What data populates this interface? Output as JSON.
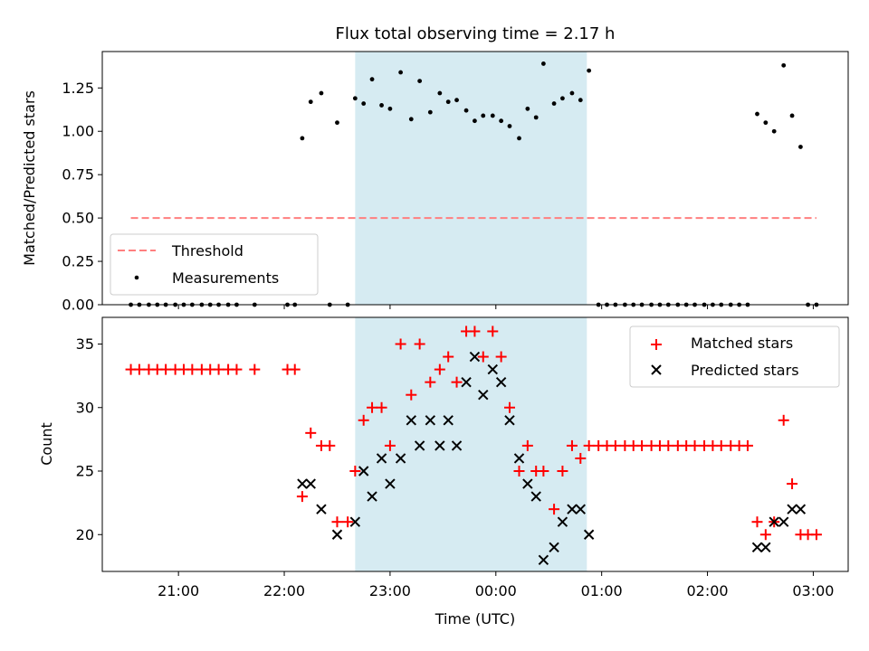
{
  "chart_data": [
    {
      "type": "scatter",
      "title": "Flux total observing time = 2.17 h",
      "xlabel": "",
      "ylabel": "Matched/Predicted stars",
      "xlim": [
        20.28,
        27.33
      ],
      "ylim": [
        0,
        1.46
      ],
      "yticks": [
        0.0,
        0.25,
        0.5,
        0.75,
        1.0,
        1.25
      ],
      "ytick_labels": [
        "0.00",
        "0.25",
        "0.50",
        "0.75",
        "1.00",
        "1.25"
      ],
      "shaded_span": {
        "x": [
          22.67,
          24.86
        ],
        "color": "#add8e6"
      },
      "legend": {
        "position": "lower-left",
        "entries": [
          "Threshold",
          "Measurements"
        ]
      },
      "series": [
        {
          "name": "Threshold",
          "style": "dashed-line",
          "color": "#ff7f7f",
          "x": [
            20.55,
            27.03
          ],
          "y": [
            0.5,
            0.5
          ]
        },
        {
          "name": "Measurements",
          "style": "dot",
          "color": "#000000",
          "points": [
            [
              20.55,
              0
            ],
            [
              20.63,
              0
            ],
            [
              20.72,
              0
            ],
            [
              20.8,
              0
            ],
            [
              20.88,
              0
            ],
            [
              20.97,
              0
            ],
            [
              21.05,
              0
            ],
            [
              21.13,
              0
            ],
            [
              21.22,
              0
            ],
            [
              21.3,
              0
            ],
            [
              21.38,
              0
            ],
            [
              21.47,
              0
            ],
            [
              21.55,
              0
            ],
            [
              21.72,
              0
            ],
            [
              22.03,
              0
            ],
            [
              22.1,
              0
            ],
            [
              22.43,
              0
            ],
            [
              22.6,
              0
            ],
            [
              22.17,
              0.96
            ],
            [
              22.25,
              1.17
            ],
            [
              22.35,
              1.22
            ],
            [
              22.5,
              1.05
            ],
            [
              22.67,
              1.19
            ],
            [
              22.75,
              1.16
            ],
            [
              22.83,
              1.3
            ],
            [
              22.92,
              1.15
            ],
            [
              23.0,
              1.13
            ],
            [
              23.1,
              1.34
            ],
            [
              23.2,
              1.07
            ],
            [
              23.28,
              1.29
            ],
            [
              23.38,
              1.11
            ],
            [
              23.47,
              1.22
            ],
            [
              23.55,
              1.17
            ],
            [
              23.63,
              1.18
            ],
            [
              23.72,
              1.12
            ],
            [
              23.8,
              1.06
            ],
            [
              23.88,
              1.09
            ],
            [
              23.97,
              1.09
            ],
            [
              24.05,
              1.06
            ],
            [
              24.13,
              1.03
            ],
            [
              24.22,
              0.96
            ],
            [
              24.3,
              1.13
            ],
            [
              24.38,
              1.08
            ],
            [
              24.45,
              1.39
            ],
            [
              24.55,
              1.16
            ],
            [
              24.63,
              1.19
            ],
            [
              24.72,
              1.22
            ],
            [
              24.8,
              1.18
            ],
            [
              24.88,
              1.35
            ],
            [
              24.97,
              0
            ],
            [
              25.05,
              0
            ],
            [
              25.13,
              0
            ],
            [
              25.22,
              0
            ],
            [
              25.3,
              0
            ],
            [
              25.38,
              0
            ],
            [
              25.47,
              0
            ],
            [
              25.55,
              0
            ],
            [
              25.63,
              0
            ],
            [
              25.72,
              0
            ],
            [
              25.8,
              0
            ],
            [
              25.88,
              0
            ],
            [
              25.97,
              0
            ],
            [
              26.05,
              0
            ],
            [
              26.13,
              0
            ],
            [
              26.22,
              0
            ],
            [
              26.3,
              0
            ],
            [
              26.38,
              0
            ],
            [
              26.47,
              1.1
            ],
            [
              26.55,
              1.05
            ],
            [
              26.63,
              1.0
            ],
            [
              26.72,
              1.38
            ],
            [
              26.8,
              1.09
            ],
            [
              26.88,
              0.91
            ],
            [
              26.95,
              0
            ],
            [
              27.03,
              0
            ]
          ]
        }
      ]
    },
    {
      "type": "scatter",
      "title": "",
      "xlabel": "Time (UTC)",
      "ylabel": "Count",
      "xlim": [
        20.28,
        27.33
      ],
      "ylim": [
        17.1,
        37.1
      ],
      "yticks": [
        20,
        25,
        30,
        35
      ],
      "ytick_labels": [
        "20",
        "25",
        "30",
        "35"
      ],
      "xticks": [
        21,
        22,
        23,
        24,
        25,
        26,
        27
      ],
      "xtick_labels": [
        "21:00",
        "22:00",
        "23:00",
        "00:00",
        "01:00",
        "02:00",
        "03:00"
      ],
      "shaded_span": {
        "x": [
          22.67,
          24.86
        ],
        "color": "#add8e6"
      },
      "legend": {
        "position": "top-right",
        "entries": [
          "Matched stars",
          "Predicted stars"
        ]
      },
      "series": [
        {
          "name": "Matched stars",
          "marker": "plus",
          "color": "#ff0000",
          "points": [
            [
              20.55,
              33
            ],
            [
              20.63,
              33
            ],
            [
              20.72,
              33
            ],
            [
              20.8,
              33
            ],
            [
              20.88,
              33
            ],
            [
              20.97,
              33
            ],
            [
              21.05,
              33
            ],
            [
              21.13,
              33
            ],
            [
              21.22,
              33
            ],
            [
              21.3,
              33
            ],
            [
              21.38,
              33
            ],
            [
              21.47,
              33
            ],
            [
              21.55,
              33
            ],
            [
              21.72,
              33
            ],
            [
              22.03,
              33
            ],
            [
              22.1,
              33
            ],
            [
              22.17,
              23
            ],
            [
              22.25,
              28
            ],
            [
              22.35,
              27
            ],
            [
              22.43,
              27
            ],
            [
              22.5,
              21
            ],
            [
              22.6,
              21
            ],
            [
              22.67,
              25
            ],
            [
              22.75,
              29
            ],
            [
              22.83,
              30
            ],
            [
              22.92,
              30
            ],
            [
              23.0,
              27
            ],
            [
              23.1,
              35
            ],
            [
              23.2,
              31
            ],
            [
              23.28,
              35
            ],
            [
              23.38,
              32
            ],
            [
              23.47,
              33
            ],
            [
              23.55,
              34
            ],
            [
              23.63,
              32
            ],
            [
              23.72,
              36
            ],
            [
              23.8,
              36
            ],
            [
              23.88,
              34
            ],
            [
              23.97,
              36
            ],
            [
              24.05,
              34
            ],
            [
              24.13,
              30
            ],
            [
              24.22,
              25
            ],
            [
              24.3,
              27
            ],
            [
              24.38,
              25
            ],
            [
              24.45,
              25
            ],
            [
              24.55,
              22
            ],
            [
              24.63,
              25
            ],
            [
              24.72,
              27
            ],
            [
              24.8,
              26
            ],
            [
              24.88,
              27
            ],
            [
              24.97,
              27
            ],
            [
              25.05,
              27
            ],
            [
              25.13,
              27
            ],
            [
              25.22,
              27
            ],
            [
              25.3,
              27
            ],
            [
              25.38,
              27
            ],
            [
              25.47,
              27
            ],
            [
              25.55,
              27
            ],
            [
              25.63,
              27
            ],
            [
              25.72,
              27
            ],
            [
              25.8,
              27
            ],
            [
              25.88,
              27
            ],
            [
              25.97,
              27
            ],
            [
              26.05,
              27
            ],
            [
              26.13,
              27
            ],
            [
              26.22,
              27
            ],
            [
              26.3,
              27
            ],
            [
              26.38,
              27
            ],
            [
              26.47,
              21
            ],
            [
              26.55,
              20
            ],
            [
              26.63,
              21
            ],
            [
              26.72,
              29
            ],
            [
              26.8,
              24
            ],
            [
              26.88,
              20
            ],
            [
              26.95,
              20
            ],
            [
              27.03,
              20
            ]
          ]
        },
        {
          "name": "Predicted stars",
          "marker": "x",
          "color": "#000000",
          "points": [
            [
              22.17,
              24
            ],
            [
              22.25,
              24
            ],
            [
              22.35,
              22
            ],
            [
              22.5,
              20
            ],
            [
              22.67,
              21
            ],
            [
              22.75,
              25
            ],
            [
              22.83,
              23
            ],
            [
              22.92,
              26
            ],
            [
              23.0,
              24
            ],
            [
              23.1,
              26
            ],
            [
              23.2,
              29
            ],
            [
              23.28,
              27
            ],
            [
              23.38,
              29
            ],
            [
              23.47,
              27
            ],
            [
              23.55,
              29
            ],
            [
              23.63,
              27
            ],
            [
              23.72,
              32
            ],
            [
              23.8,
              34
            ],
            [
              23.88,
              31
            ],
            [
              23.97,
              33
            ],
            [
              24.05,
              32
            ],
            [
              24.13,
              29
            ],
            [
              24.22,
              26
            ],
            [
              24.3,
              24
            ],
            [
              24.38,
              23
            ],
            [
              24.45,
              18
            ],
            [
              24.55,
              19
            ],
            [
              24.63,
              21
            ],
            [
              24.72,
              22
            ],
            [
              24.8,
              22
            ],
            [
              24.88,
              20
            ],
            [
              26.47,
              19
            ],
            [
              26.55,
              19
            ],
            [
              26.63,
              21
            ],
            [
              26.72,
              21
            ],
            [
              26.8,
              22
            ],
            [
              26.88,
              22
            ]
          ]
        }
      ]
    }
  ]
}
